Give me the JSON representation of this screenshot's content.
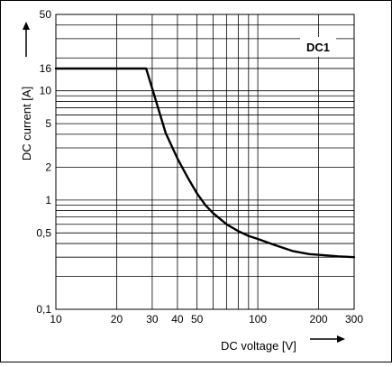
{
  "chart_data": {
    "type": "line",
    "legend": "DC1",
    "xlabel": "DC voltage [V]",
    "ylabel": "DC current [A]",
    "xscale": "log",
    "yscale": "log",
    "xlim": [
      10,
      300
    ],
    "ylim": [
      0.1,
      50
    ],
    "grid": true,
    "x_tick_labels": [
      "10",
      "20",
      "30",
      "40",
      "50",
      "100",
      "200",
      "300"
    ],
    "y_tick_labels": [
      "0,1",
      "0,5",
      "1",
      "2",
      "5",
      "10",
      "16",
      "50"
    ],
    "series": [
      {
        "name": "DC1",
        "x": [
          10,
          15,
          20,
          25,
          28,
          30,
          35,
          40,
          45,
          50,
          55,
          60,
          70,
          80,
          90,
          100,
          120,
          150,
          180,
          200,
          250,
          300
        ],
        "y": [
          16,
          16,
          16,
          16,
          16,
          10.5,
          4.1,
          2.4,
          1.6,
          1.15,
          0.9,
          0.76,
          0.6,
          0.52,
          0.47,
          0.44,
          0.39,
          0.34,
          0.32,
          0.315,
          0.305,
          0.3
        ]
      }
    ]
  },
  "colors": {
    "line": "#000000",
    "grid": "#000000",
    "background": "#ffffff"
  }
}
